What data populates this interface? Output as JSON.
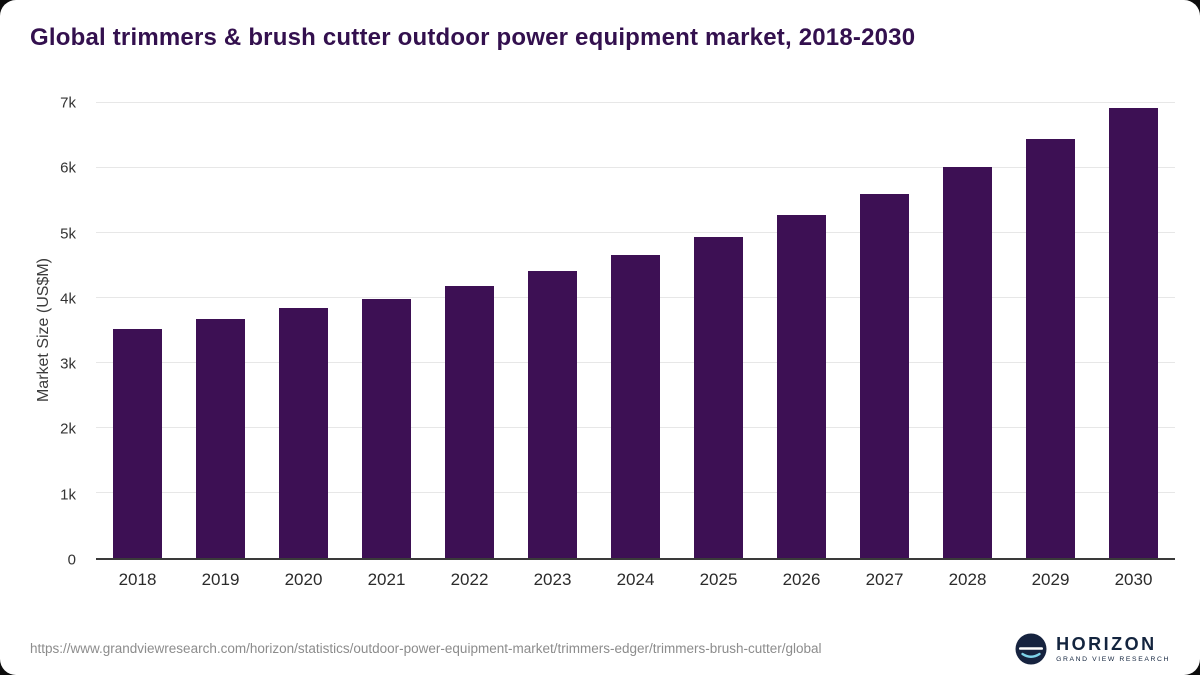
{
  "header": {
    "title": "Global trimmers & brush cutter outdoor power equipment market, 2018-2030"
  },
  "chart_data": {
    "type": "bar",
    "categories": [
      "2018",
      "2019",
      "2020",
      "2021",
      "2022",
      "2023",
      "2024",
      "2025",
      "2026",
      "2027",
      "2028",
      "2029",
      "2030"
    ],
    "values": [
      3520,
      3680,
      3850,
      3980,
      4180,
      4410,
      4660,
      4940,
      5270,
      5600,
      6010,
      6440,
      6930
    ],
    "title": "Global trimmers & brush cutter outdoor power equipment market, 2018-2030",
    "xlabel": "",
    "ylabel": "Market Size (US$M)",
    "ylim": [
      0,
      7000
    ],
    "y_ticks": [
      "0",
      "1k",
      "2k",
      "3k",
      "4k",
      "5k",
      "6k",
      "7k"
    ],
    "grid": true,
    "legend": false,
    "bar_color": "#3d1054"
  },
  "footer": {
    "source_url": "https://www.grandviewresearch.com/horizon/statistics/outdoor-power-equipment-market/trimmers-edger/trimmers-brush-cutter/global",
    "logo_text": "HORIZON",
    "logo_subtext": "GRAND VIEW RESEARCH"
  }
}
